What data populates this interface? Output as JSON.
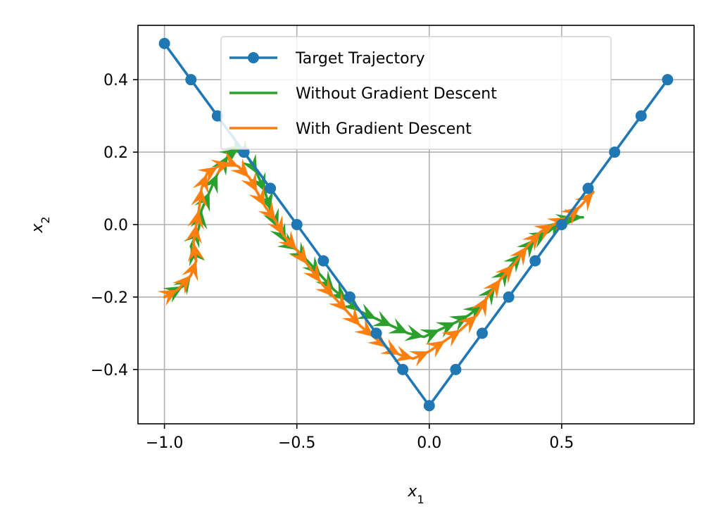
{
  "chart_data": {
    "type": "line",
    "title": "",
    "xlabel": "x",
    "xlabel_sub": "1",
    "ylabel": "x",
    "ylabel_sub": "2",
    "xlim": [
      -1.1,
      1.0
    ],
    "ylim": [
      -0.55,
      0.55
    ],
    "xticks": [
      -1.0,
      -0.5,
      0.0,
      0.5
    ],
    "xtick_labels": [
      "−1.0",
      "−0.5",
      "0.0",
      "0.5"
    ],
    "yticks": [
      -0.4,
      -0.2,
      0.0,
      0.2,
      0.4
    ],
    "ytick_labels": [
      "−0.4",
      "−0.2",
      "0.0",
      "0.2",
      "0.4"
    ],
    "grid": true,
    "legend_position": "top-center",
    "series": [
      {
        "name": "Target Trajectory",
        "color": "#1f77b4",
        "marker": "circle",
        "x": [
          -1.0,
          -0.9,
          -0.8,
          -0.7,
          -0.6,
          -0.5,
          -0.4,
          -0.3,
          -0.2,
          -0.1,
          0.0,
          0.1,
          0.2,
          0.3,
          0.4,
          0.5,
          0.6,
          0.7,
          0.8,
          0.9
        ],
        "y": [
          0.5,
          0.4,
          0.3,
          0.2,
          0.1,
          0.0,
          -0.1,
          -0.2,
          -0.3,
          -0.4,
          -0.5,
          -0.4,
          -0.3,
          -0.2,
          -0.1,
          0.0,
          0.1,
          0.2,
          0.3,
          0.4
        ]
      },
      {
        "name": "Without Gradient Descent",
        "color": "#2ca02c",
        "marker": "arrow",
        "x": [
          -1.0,
          -0.93,
          -0.9,
          -0.88,
          -0.9,
          -0.87,
          -0.86,
          -0.83,
          -0.8,
          -0.76,
          -0.72,
          -0.7,
          -0.68,
          -0.65,
          -0.62,
          -0.6,
          -0.57,
          -0.54,
          -0.5,
          -0.46,
          -0.41,
          -0.36,
          -0.31,
          -0.26,
          -0.2,
          -0.14,
          -0.08,
          -0.02,
          0.04,
          0.1,
          0.15,
          0.2,
          0.25,
          0.3,
          0.35,
          0.4,
          0.45,
          0.5,
          0.55,
          0.58
        ],
        "y": [
          -0.2,
          -0.17,
          -0.14,
          -0.1,
          -0.06,
          -0.01,
          0.04,
          0.09,
          0.14,
          0.19,
          0.21,
          0.2,
          0.18,
          0.14,
          0.09,
          0.04,
          -0.01,
          -0.05,
          -0.07,
          -0.1,
          -0.14,
          -0.18,
          -0.21,
          -0.24,
          -0.26,
          -0.28,
          -0.3,
          -0.31,
          -0.29,
          -0.27,
          -0.25,
          -0.22,
          -0.17,
          -0.12,
          -0.08,
          -0.04,
          -0.02,
          0.01,
          0.02,
          0.02
        ]
      },
      {
        "name": "With Gradient Descent",
        "color": "#ff7f0e",
        "marker": "arrow",
        "x": [
          -1.0,
          -0.95,
          -0.9,
          -0.88,
          -0.89,
          -0.88,
          -0.87,
          -0.86,
          -0.84,
          -0.8,
          -0.75,
          -0.72,
          -0.68,
          -0.65,
          -0.62,
          -0.58,
          -0.55,
          -0.5,
          -0.46,
          -0.41,
          -0.36,
          -0.31,
          -0.26,
          -0.21,
          -0.16,
          -0.11,
          -0.06,
          0.0,
          0.06,
          0.12,
          0.18,
          0.22,
          0.27,
          0.32,
          0.37,
          0.42,
          0.47,
          0.52,
          0.57,
          0.62
        ],
        "y": [
          -0.2,
          -0.18,
          -0.14,
          -0.1,
          -0.05,
          0.0,
          0.04,
          0.1,
          0.14,
          0.16,
          0.17,
          0.16,
          0.13,
          0.09,
          0.05,
          0.01,
          -0.03,
          -0.07,
          -0.11,
          -0.16,
          -0.2,
          -0.24,
          -0.28,
          -0.31,
          -0.34,
          -0.36,
          -0.37,
          -0.35,
          -0.32,
          -0.29,
          -0.25,
          -0.2,
          -0.15,
          -0.11,
          -0.06,
          -0.02,
          0.0,
          0.02,
          0.05,
          0.09
        ]
      }
    ]
  }
}
